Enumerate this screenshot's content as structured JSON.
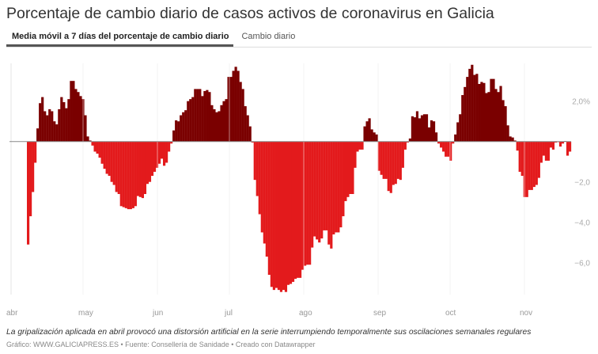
{
  "title": "Porcentaje de cambio diario de casos activos de coronavirus en Galicia",
  "tabs": [
    {
      "label": "Media móvil a 7 días del porcentaje de cambio diario",
      "active": true
    },
    {
      "label": "Cambio diario",
      "active": false
    }
  ],
  "note": "La gripalización aplicada en abril provocó una distorsión artificial en la serie interrumpiendo temporalmente sus oscilaciones semanales regulares",
  "source": "Gráfico: WWW.GALICIAPRESS.ES • Fuente: Consellería de Sanidade • Creado con Datawrapper",
  "chart_data": {
    "type": "bar",
    "title": "",
    "xlabel": "",
    "ylabel": "",
    "x_tick_labels": [
      "abr",
      "may",
      "jun",
      "jul",
      "ago",
      "sep",
      "oct",
      "nov"
    ],
    "y_ticks": [
      {
        "value": 2,
        "label": "2,0%"
      },
      {
        "value": -2,
        "label": "−2,0"
      },
      {
        "value": -4,
        "label": "−4,0"
      },
      {
        "value": -6,
        "label": "−6,0"
      }
    ],
    "ylim": [
      -7.6,
      3.9
    ],
    "grid": "vertical month lines",
    "colors": {
      "positive": "#7a0000",
      "negative": "#e31a1c",
      "zero_line": "#888888",
      "grid": "#e6e6e6"
    },
    "values": [
      -5.1,
      -3.7,
      -2.5,
      -1.05,
      0.65,
      1.9,
      2.2,
      1.5,
      1.3,
      1.6,
      1.5,
      1.0,
      0.85,
      1.6,
      2.2,
      1.95,
      1.65,
      2.1,
      3.0,
      3.0,
      2.6,
      2.45,
      2.25,
      2.1,
      1.3,
      0.25,
      0.05,
      -0.2,
      -0.5,
      -0.6,
      -0.8,
      -1.1,
      -1.35,
      -1.6,
      -1.7,
      -2.0,
      -2.15,
      -2.5,
      -2.6,
      -3.2,
      -3.25,
      -3.3,
      -3.35,
      -3.35,
      -3.3,
      -3.2,
      -2.7,
      -2.75,
      -2.8,
      -2.6,
      -2.1,
      -2.0,
      -1.7,
      -1.5,
      -1.3,
      -1.1,
      -0.85,
      -1.2,
      -1.05,
      -0.5,
      -0.1,
      0.55,
      1.05,
      1.0,
      1.3,
      1.45,
      1.55,
      2.0,
      2.1,
      2.2,
      2.6,
      2.6,
      2.6,
      2.25,
      2.5,
      2.55,
      2.45,
      1.8,
      1.6,
      1.45,
      1.5,
      1.8,
      2.0,
      2.1,
      3.2,
      3.2,
      3.5,
      3.7,
      3.5,
      2.95,
      2.6,
      1.75,
      1.3,
      0.75,
      -0.05,
      -1.9,
      -2.7,
      -3.6,
      -4.5,
      -5.05,
      -5.7,
      -6.6,
      -7.2,
      -7.35,
      -7.25,
      -7.35,
      -7.45,
      -7.35,
      -7.45,
      -7.1,
      -7.05,
      -6.95,
      -6.8,
      -6.75,
      -6.75,
      -6.35,
      -6.15,
      -6.1,
      -6.1,
      -5.25,
      -4.7,
      -4.85,
      -5.0,
      -4.8,
      -4.4,
      -4.4,
      -5.1,
      -5.3,
      -4.6,
      -4.5,
      -4.5,
      -4.25,
      -3.7,
      -2.95,
      -2.75,
      -2.6,
      -2.6,
      -1.3,
      -0.5,
      -0.4,
      -0.4,
      0.75,
      1.0,
      1.15,
      0.6,
      0.45,
      0.35,
      -1.45,
      -1.65,
      -1.85,
      -1.85,
      -2.45,
      -2.55,
      -2.15,
      -2.1,
      -1.85,
      -1.9,
      -1.3,
      -0.4,
      -0.05,
      0.15,
      1.25,
      1.2,
      1.5,
      1.15,
      1.3,
      1.35,
      1.35,
      0.7,
      1.05,
      1.0,
      0.45,
      -0.1,
      -0.3,
      -0.5,
      -0.75,
      -0.75,
      -0.95,
      -0.1,
      0.35,
      0.95,
      1.35,
      2.3,
      2.7,
      3.2,
      3.6,
      3.8,
      3.3,
      3.35,
      2.85,
      2.95,
      2.9,
      2.4,
      2.45,
      3.1,
      3.1,
      2.6,
      2.45,
      2.75,
      2.05,
      1.75,
      0.8,
      0.25,
      0.2,
      0.05,
      -0.45,
      -1.5,
      -1.7,
      -2.75,
      -2.75,
      -2.4,
      -2.4,
      -2.25,
      -2.15,
      -1.8,
      -1.05,
      -0.7,
      -0.95,
      -0.95,
      -0.3,
      -0.4,
      -0.05,
      -0.03,
      -0.25,
      -0.1,
      0.02,
      -0.7,
      -0.5
    ]
  }
}
